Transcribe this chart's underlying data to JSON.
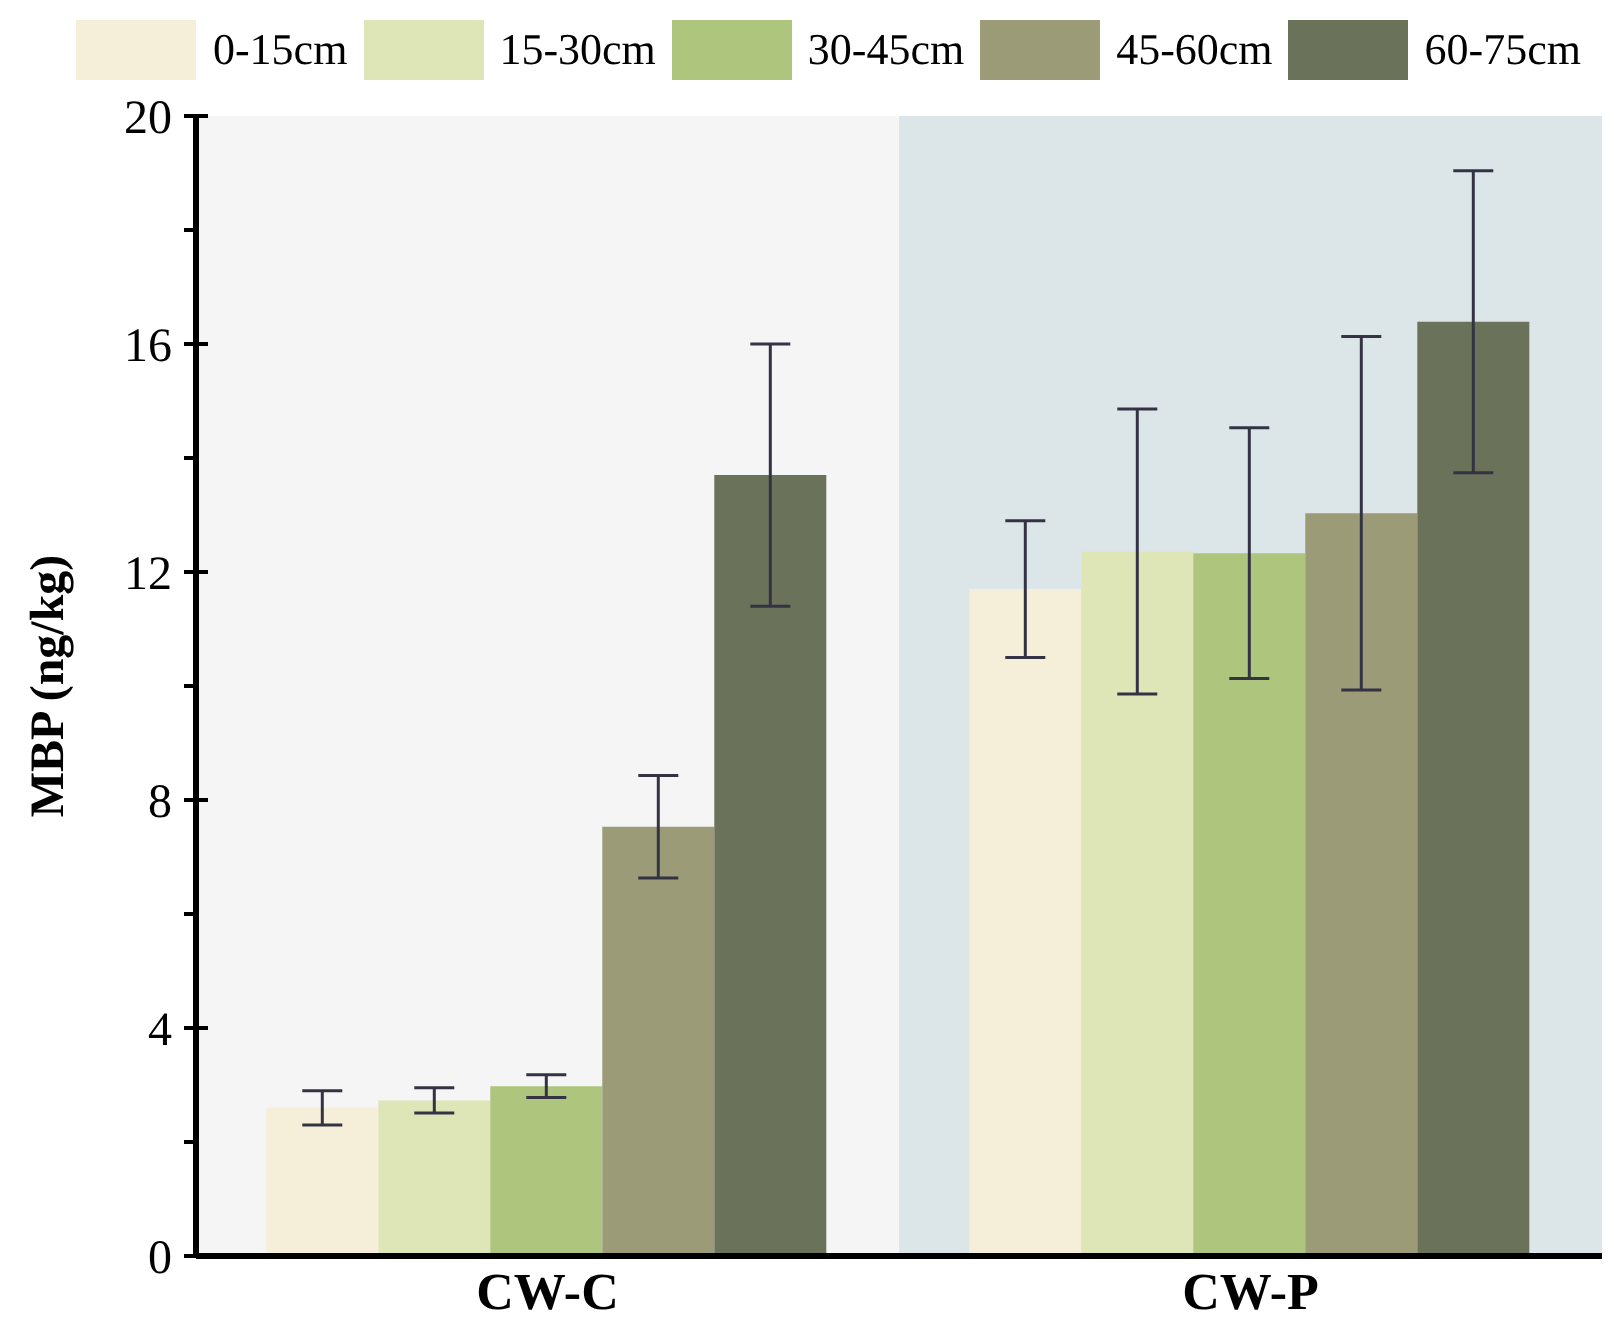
{
  "chart_data": {
    "type": "bar",
    "ylabel": "MBP (ng/kg)",
    "categories": [
      "CW-C",
      "CW-P"
    ],
    "series": [
      {
        "name": "0-15cm",
        "color": "#f5efd9",
        "values": [
          2.6,
          11.7
        ],
        "errors": [
          0.3,
          1.2
        ]
      },
      {
        "name": "15-30cm",
        "color": "#dee6b8",
        "values": [
          2.73,
          12.36
        ],
        "errors": [
          0.22,
          2.5
        ]
      },
      {
        "name": "30-45cm",
        "color": "#adc57c",
        "values": [
          2.98,
          12.33
        ],
        "errors": [
          0.2,
          2.2
        ]
      },
      {
        "name": "45-60cm",
        "color": "#9b9b78",
        "values": [
          7.53,
          13.03
        ],
        "errors": [
          0.9,
          3.1
        ]
      },
      {
        "name": "60-75cm",
        "color": "#6a7359",
        "values": [
          13.7,
          16.39
        ],
        "errors": [
          2.3,
          2.65
        ]
      }
    ],
    "bands": [
      {
        "axis": "x",
        "from": "CW-C",
        "to": "CW-C",
        "color": "#f5f5f5"
      },
      {
        "axis": "x",
        "from": "CW-P",
        "to": "CW-P",
        "color": "#dce6e8"
      }
    ],
    "ylim": [
      0,
      20
    ],
    "yticks": [
      0,
      {
        "value": 2,
        "label": null
      },
      4,
      {
        "value": 6,
        "label": null
      },
      8,
      {
        "value": 10,
        "label": null
      },
      12,
      {
        "value": 14,
        "label": null
      },
      16,
      {
        "value": 18,
        "label": null
      },
      20
    ],
    "legend": "top",
    "grid": false
  }
}
